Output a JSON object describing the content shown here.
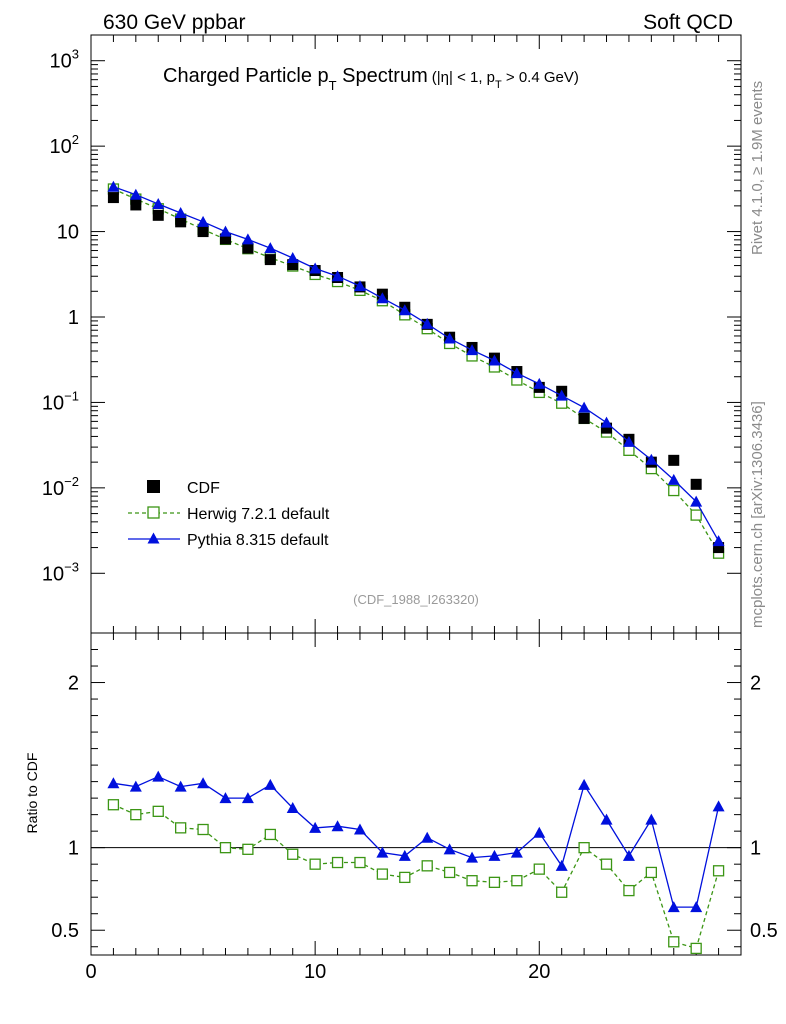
{
  "header": {
    "left": "630 GeV ppbar",
    "right": "Soft QCD"
  },
  "side_labels": {
    "rivet": "Rivet 4.1.0, ≥ 1.9M events",
    "mcplots": "mcplots.cern.ch [arXiv:1306.3436]"
  },
  "chart_data": [
    {
      "type": "scatter",
      "title_main": "Charged Particle p",
      "title_sub": "T",
      "title_word": " Spectrum",
      "title_cut_a": "(|η| < 1, p",
      "title_cut_sub": "T",
      "title_cut_b": " > 0.4 GeV)",
      "analysis_tag": "(CDF_1988_I263320)",
      "yscale": "log",
      "xlim": [
        0,
        29
      ],
      "ylim": [
        0.0002,
        2000
      ],
      "yticks": [
        {
          "value": 1000,
          "mantissa": "10",
          "exp": "3"
        },
        {
          "value": 100,
          "mantissa": "10",
          "exp": "2"
        },
        {
          "value": 10,
          "mantissa": "10",
          "exp": ""
        },
        {
          "value": 1,
          "mantissa": "1",
          "exp": ""
        },
        {
          "value": 0.1,
          "mantissa": "10",
          "exp": "−1"
        },
        {
          "value": 0.01,
          "mantissa": "10",
          "exp": "−2"
        },
        {
          "value": 0.001,
          "mantissa": "10",
          "exp": "−3"
        }
      ],
      "x": [
        1,
        2,
        3,
        4,
        5,
        6,
        7,
        8,
        9,
        10,
        11,
        12,
        13,
        14,
        15,
        16,
        17,
        18,
        19,
        20,
        21,
        22,
        23,
        24,
        25,
        26,
        27,
        28
      ],
      "legend_position": "lower-left",
      "series": [
        {
          "name": "CDF",
          "style": "data",
          "color": "#000000",
          "values": [
            25,
            20.5,
            15.5,
            13,
            10,
            8.2,
            6.4,
            4.7,
            4.1,
            3.5,
            2.9,
            2.25,
            1.85,
            1.3,
            0.82,
            0.58,
            0.44,
            0.33,
            0.23,
            0.15,
            0.135,
            0.065,
            0.05,
            0.037,
            0.02,
            0.021,
            0.011,
            0.002
          ]
        },
        {
          "name": "Herwig 7.2.1 default",
          "style": "herwig",
          "color": "#3b9514",
          "values": [
            31.5,
            24,
            18.5,
            14,
            10.6,
            8.1,
            6.3,
            4.95,
            3.95,
            3.15,
            2.6,
            2.05,
            1.55,
            1.06,
            0.73,
            0.49,
            0.35,
            0.26,
            0.183,
            0.131,
            0.098,
            0.065,
            0.045,
            0.0275,
            0.0168,
            0.0093,
            0.0048,
            0.00172
          ]
        },
        {
          "name": "Pythia 8.315 default",
          "style": "pythia",
          "color": "#0010dd",
          "values": [
            33.5,
            27,
            21,
            16.5,
            13,
            10,
            8.1,
            6.4,
            4.9,
            3.7,
            3,
            2.3,
            1.66,
            1.2,
            0.83,
            0.56,
            0.41,
            0.31,
            0.22,
            0.165,
            0.12,
            0.087,
            0.058,
            0.0345,
            0.0213,
            0.0124,
            0.0069,
            0.00238
          ]
        }
      ]
    },
    {
      "type": "line",
      "ylabel": "Ratio to CDF",
      "xlim": [
        0,
        29
      ],
      "ylim": [
        0.35,
        2.3
      ],
      "xticks": [
        0,
        10,
        20
      ],
      "yticks": [
        0.5,
        1,
        2
      ],
      "ytick_labels": [
        "0.5",
        "1",
        "2"
      ],
      "reference_line": 1,
      "x": [
        1,
        2,
        3,
        4,
        5,
        6,
        7,
        8,
        9,
        10,
        11,
        12,
        13,
        14,
        15,
        16,
        17,
        18,
        19,
        20,
        21,
        22,
        23,
        24,
        25,
        26,
        27,
        28
      ],
      "series": [
        {
          "name": "Herwig 7.2.1 default",
          "style": "herwig",
          "color": "#3b9514",
          "values": [
            1.26,
            1.2,
            1.22,
            1.12,
            1.11,
            1,
            0.99,
            1.08,
            0.96,
            0.9,
            0.91,
            0.91,
            0.84,
            0.82,
            0.89,
            0.85,
            0.8,
            0.79,
            0.8,
            0.87,
            0.73,
            1,
            0.9,
            0.74,
            0.85,
            0.43,
            0.39,
            0.86
          ]
        },
        {
          "name": "Pythia 8.315 default",
          "style": "pythia",
          "color": "#0010dd",
          "values": [
            1.39,
            1.37,
            1.43,
            1.37,
            1.39,
            1.3,
            1.3,
            1.38,
            1.24,
            1.12,
            1.13,
            1.11,
            0.97,
            0.95,
            1.06,
            0.99,
            0.94,
            0.95,
            0.97,
            1.09,
            0.89,
            1.38,
            1.17,
            0.95,
            1.17,
            0.64,
            0.64,
            1.25
          ]
        }
      ]
    }
  ]
}
